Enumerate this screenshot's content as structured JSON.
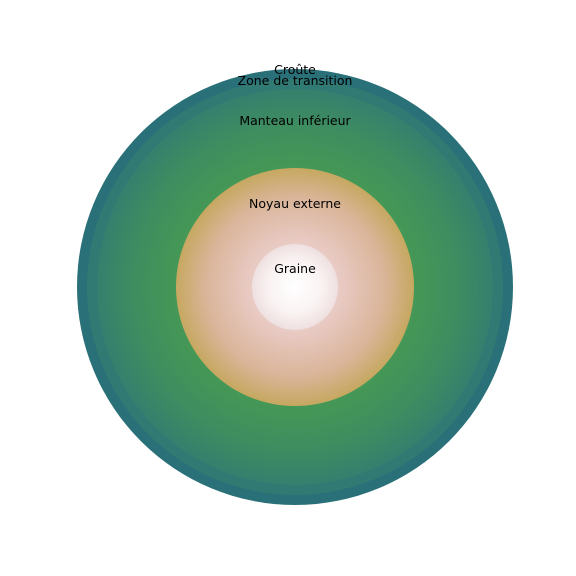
{
  "diagram": {
    "type": "concentric-layers",
    "layers": [
      {
        "id": "croute",
        "label": "Croûte",
        "colors": [
          "#2a7078",
          "#2a7078"
        ]
      },
      {
        "id": "transition",
        "label": "Zone de transition",
        "colors": [
          "#2f7a72",
          "#357f70"
        ]
      },
      {
        "id": "manteau",
        "label": "Manteau inférieur",
        "colors": [
          "#3a8a68",
          "#449a55"
        ]
      },
      {
        "id": "noyau",
        "label": "Noyau externe",
        "colors": [
          "#e3c3c0",
          "#c8a765"
        ]
      },
      {
        "id": "graine",
        "label": "Graine",
        "colors": [
          "#ffffff",
          "#f2e8e8"
        ]
      }
    ]
  }
}
